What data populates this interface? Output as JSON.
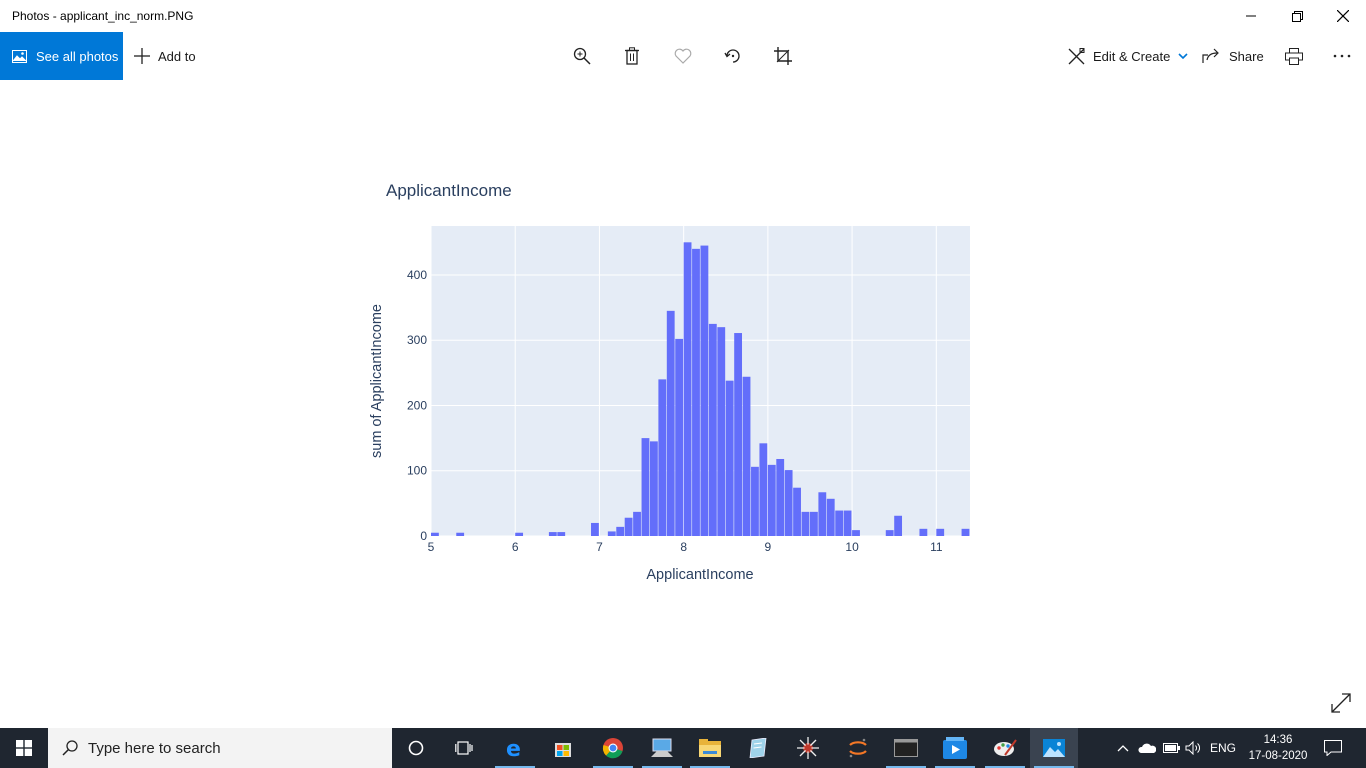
{
  "window": {
    "title": "Photos - applicant_inc_norm.PNG"
  },
  "toolbar": {
    "see_all_label": "See all photos",
    "add_to_label": "Add to",
    "edit_create_label": "Edit & Create",
    "share_label": "Share",
    "accent": "#0078d7"
  },
  "icons": {
    "see_all": "photos-icon",
    "add": "plus-icon",
    "zoom": "zoom-in-icon",
    "delete": "trash-icon",
    "favorite": "heart-icon",
    "rotate": "rotate-icon",
    "crop": "crop-icon",
    "edit": "edit-create-icon",
    "share": "share-icon",
    "print": "print-icon",
    "more": "more-icon"
  },
  "chart_data": {
    "type": "bar",
    "title": "ApplicantIncome",
    "xlabel": "ApplicantIncome",
    "ylabel": "sum of ApplicantIncome",
    "bar_color": "#636efa",
    "plot_bg": "#e5ecf6",
    "grid": true,
    "xlim": [
      5,
      11.4
    ],
    "ylim": [
      0,
      475
    ],
    "x_ticks": [
      5,
      6,
      7,
      8,
      9,
      10,
      11
    ],
    "y_ticks": [
      0,
      100,
      200,
      300,
      400
    ],
    "bin_width": 0.1,
    "bin_starts": [
      5.0,
      5.3,
      6.0,
      6.4,
      6.5,
      6.9,
      7.1,
      7.2,
      7.3,
      7.4,
      7.5,
      7.6,
      7.7,
      7.8,
      7.9,
      8.0,
      8.1,
      8.2,
      8.3,
      8.4,
      8.5,
      8.6,
      8.7,
      8.8,
      8.9,
      9.0,
      9.1,
      9.2,
      9.3,
      9.4,
      9.5,
      9.6,
      9.7,
      9.8,
      9.9,
      10.0,
      10.4,
      10.5,
      10.8,
      11.0,
      11.3
    ],
    "values": [
      5,
      5,
      5,
      6,
      6,
      20,
      7,
      14,
      28,
      37,
      150,
      145,
      240,
      345,
      302,
      450,
      440,
      445,
      325,
      320,
      238,
      311,
      244,
      106,
      142,
      109,
      118,
      101,
      74,
      37,
      37,
      67,
      57,
      39,
      39,
      9,
      9,
      31,
      11,
      11,
      11
    ]
  },
  "taskbar": {
    "search_placeholder": "Type here to search",
    "language": "ENG",
    "time": "14:36",
    "date": "17-08-2020",
    "apps": [
      "task-view-icon",
      "cortana-icon",
      "edge-icon",
      "store-icon",
      "chrome-icon",
      "pc-icon",
      "file-explorer-icon",
      "notepad-icon",
      "spider-icon",
      "jupyter-icon",
      "terminal-icon",
      "media-player-icon",
      "paint-icon",
      "photos-app-icon"
    ]
  }
}
